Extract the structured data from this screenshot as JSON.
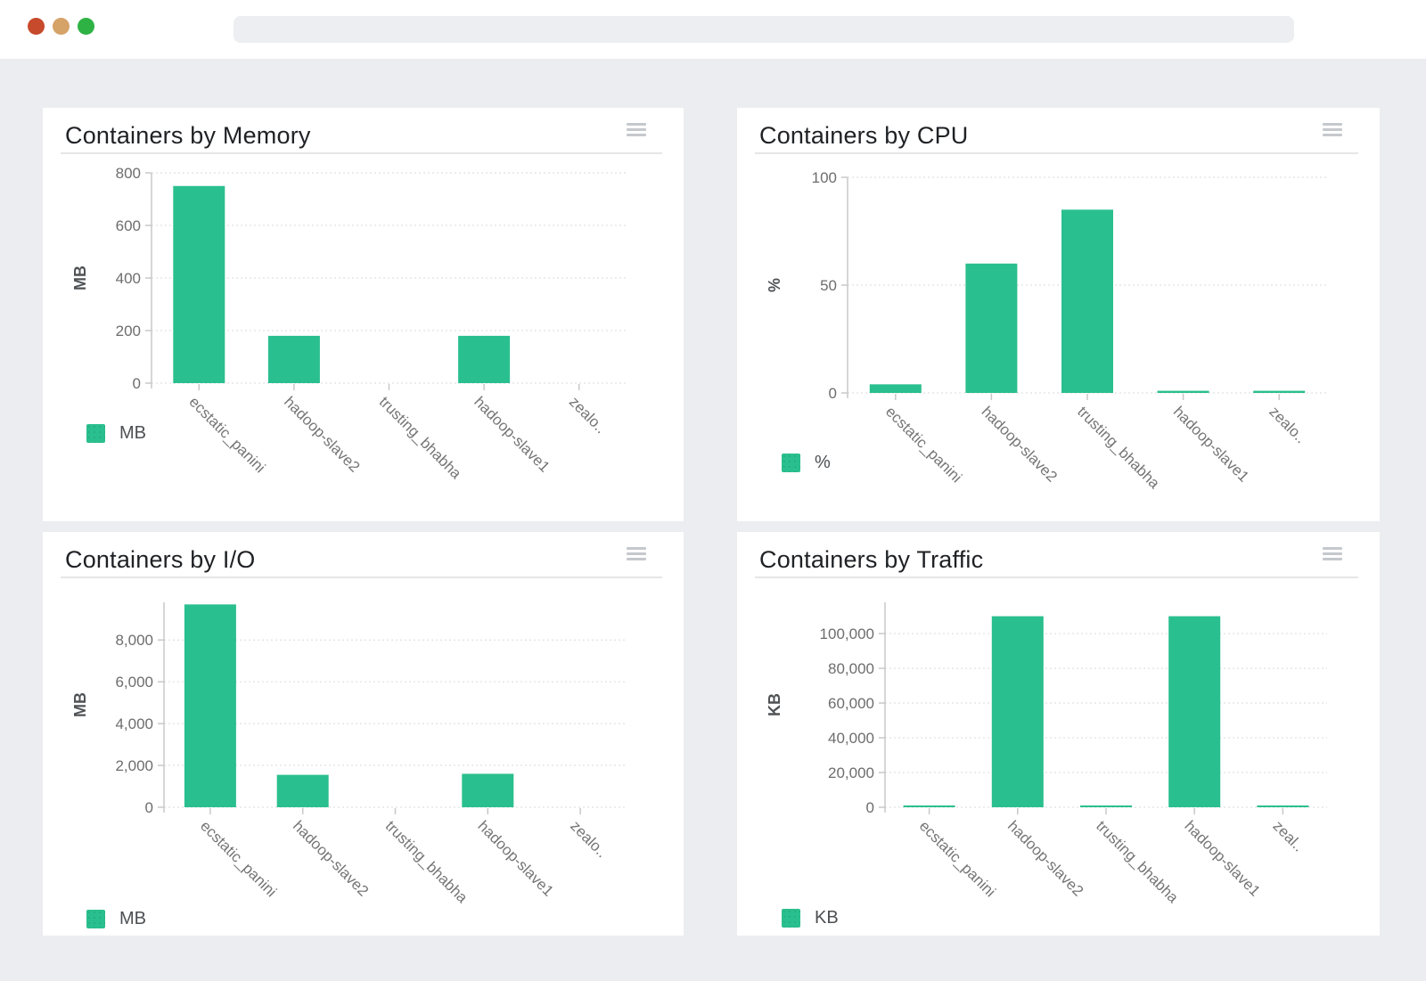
{
  "browser": {
    "address_value": "",
    "window_dots": [
      {
        "name": "close-dot",
        "color": "#c64a2b"
      },
      {
        "name": "minimize-dot",
        "color": "#d5a268"
      },
      {
        "name": "zoom-dot",
        "color": "#2eb244"
      }
    ]
  },
  "colors": {
    "accent_green": "#2abf8e",
    "page_background": "#ecedf0",
    "panel_background": "#ffffff",
    "gridline": "#d9d9d9",
    "axis_line": "#c8c8c8",
    "tick_text": "#6d6d6d",
    "x_label_text": "#757575"
  },
  "chart_data": [
    {
      "type": "bar",
      "title": "Containers by Memory",
      "ylabel": "MB",
      "legend": "MB",
      "legend_position": "bottom-left",
      "grid": "dotted-horizontal",
      "categories": [
        "ecstatic_panini",
        "hadoop-slave2",
        "trusting_bhabha",
        "hadoop-slave1",
        "zealo.."
      ],
      "values": [
        750,
        180,
        0,
        180,
        0
      ],
      "yticks": [
        0,
        200,
        400,
        600,
        800
      ],
      "ylim": [
        0,
        800
      ],
      "comma": false
    },
    {
      "type": "bar",
      "title": "Containers by CPU",
      "ylabel": "%",
      "legend": "%",
      "legend_position": "bottom-left",
      "grid": "dotted-horizontal",
      "categories": [
        "ecstatic_panini",
        "hadoop-slave2",
        "trusting_bhabha",
        "hadoop-slave1",
        "zealo.."
      ],
      "values": [
        4,
        60,
        85,
        1,
        1
      ],
      "yticks": [
        0,
        50,
        100
      ],
      "ylim": [
        0,
        100
      ],
      "comma": false
    },
    {
      "type": "bar",
      "title": "Containers by I/O",
      "ylabel": "MB",
      "legend": "MB",
      "legend_position": "bottom-left",
      "grid": "dotted-horizontal",
      "categories": [
        "ecstatic_panini",
        "hadoop-slave2",
        "trusting_bhabha",
        "hadoop-slave1",
        "zealo.."
      ],
      "values": [
        9700,
        1550,
        0,
        1600,
        0
      ],
      "yticks": [
        0,
        2000,
        4000,
        6000,
        8000
      ],
      "ylim": [
        0,
        9800
      ],
      "comma": true
    },
    {
      "type": "bar",
      "title": "Containers by Traffic",
      "ylabel": "KB",
      "legend": "KB",
      "legend_position": "bottom-left",
      "grid": "dotted-horizontal",
      "categories": [
        "ecstatic_panini",
        "hadoop-slave2",
        "trusting_bhabha",
        "hadoop-slave1",
        "zeal.."
      ],
      "values": [
        600,
        110000,
        600,
        110000,
        600
      ],
      "yticks": [
        0,
        20000,
        40000,
        60000,
        80000,
        100000
      ],
      "ylim": [
        0,
        118000
      ],
      "comma": true
    }
  ]
}
